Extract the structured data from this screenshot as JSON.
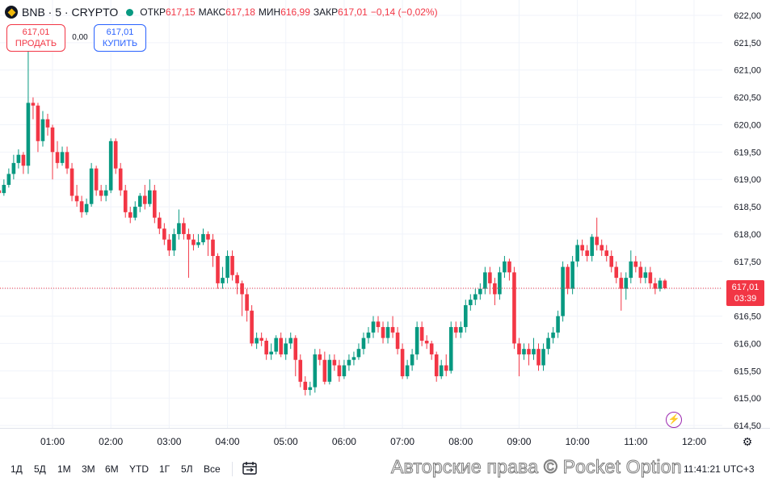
{
  "header": {
    "symbol": "BNB · 5 · CRYPTO",
    "open_label": "ОТКР",
    "open_value": "617,15",
    "high_label": "МАКС",
    "high_value": "617,18",
    "low_label": "МИН",
    "low_value": "616,99",
    "close_label": "ЗАКР",
    "close_value": "617,01",
    "change": "−0,14 (−0,02%)"
  },
  "trade": {
    "sell_price": "617,01",
    "sell_label": "ПРОДАТЬ",
    "spread": "0,00",
    "buy_price": "617,01",
    "buy_label": "КУПИТЬ"
  },
  "price_tag": {
    "price": "617,01",
    "countdown": "03:39"
  },
  "timeframes": [
    "1Д",
    "5Д",
    "1М",
    "3М",
    "6М",
    "YTD",
    "1Г",
    "5Л",
    "Все"
  ],
  "clock": "11:41:21 UTC+3",
  "watermark": "Авторские права © Pocket Option",
  "colors": {
    "up": "#089981",
    "down": "#f23645",
    "grid": "#f0f3fa",
    "tag": "#f23645"
  },
  "icons": {
    "flash": "lightning-icon",
    "settings": "gear-icon",
    "calendar": "calendar-range-icon"
  },
  "chart_data": {
    "type": "candlestick",
    "symbol": "BNB",
    "interval_minutes": 5,
    "y_ticks": [
      "622,00",
      "621,50",
      "621,00",
      "620,50",
      "620,00",
      "619,50",
      "619,00",
      "618,50",
      "618,00",
      "617,50",
      "617,00",
      "616,50",
      "616,00",
      "615,50",
      "615,00",
      "614,50"
    ],
    "y_range": [
      614.4,
      622.2
    ],
    "x_ticks": [
      "01:00",
      "02:00",
      "03:00",
      "04:00",
      "05:00",
      "06:00",
      "07:00",
      "08:00",
      "09:00",
      "10:00",
      "11:00",
      "12:00"
    ],
    "last_price": 617.01,
    "candles": [
      [
        618.8,
        618.75,
        618.9,
        618.65
      ],
      [
        618.75,
        618.9,
        619.0,
        618.7
      ],
      [
        618.9,
        619.1,
        619.2,
        618.85
      ],
      [
        619.1,
        619.3,
        619.45,
        619.0
      ],
      [
        619.3,
        619.45,
        619.55,
        619.2
      ],
      [
        619.45,
        619.25,
        619.5,
        619.1
      ],
      [
        619.25,
        620.4,
        621.7,
        619.1
      ],
      [
        620.4,
        620.35,
        620.5,
        620.1
      ],
      [
        620.35,
        619.7,
        620.4,
        619.5
      ],
      [
        619.7,
        620.1,
        620.25,
        619.6
      ],
      [
        620.1,
        619.95,
        620.2,
        619.8
      ],
      [
        619.95,
        619.5,
        620.0,
        619.0
      ],
      [
        619.5,
        619.3,
        619.7,
        619.2
      ],
      [
        619.3,
        619.5,
        619.6,
        619.25
      ],
      [
        619.5,
        619.2,
        619.6,
        619.1
      ],
      [
        619.2,
        618.7,
        619.3,
        618.6
      ],
      [
        618.7,
        618.6,
        618.9,
        618.5
      ],
      [
        618.6,
        618.4,
        618.7,
        618.3
      ],
      [
        618.4,
        618.55,
        618.65,
        618.35
      ],
      [
        618.55,
        619.2,
        619.3,
        618.5
      ],
      [
        619.2,
        618.8,
        619.25,
        618.7
      ],
      [
        618.8,
        618.7,
        618.9,
        618.6
      ],
      [
        618.7,
        618.8,
        618.9,
        618.6
      ],
      [
        618.8,
        619.7,
        619.75,
        618.75
      ],
      [
        619.7,
        619.2,
        619.75,
        619.1
      ],
      [
        619.2,
        618.8,
        619.3,
        618.7
      ],
      [
        618.8,
        618.4,
        618.9,
        618.3
      ],
      [
        618.4,
        618.3,
        618.5,
        618.2
      ],
      [
        618.3,
        618.5,
        618.6,
        618.25
      ],
      [
        618.5,
        618.7,
        618.75,
        618.4
      ],
      [
        618.7,
        618.55,
        618.9,
        618.45
      ],
      [
        618.55,
        618.8,
        619.0,
        618.5
      ],
      [
        618.8,
        618.3,
        618.9,
        618.2
      ],
      [
        618.3,
        618.1,
        618.4,
        618.0
      ],
      [
        618.1,
        617.9,
        618.2,
        617.8
      ],
      [
        617.9,
        617.7,
        618.0,
        617.6
      ],
      [
        617.7,
        618.0,
        618.1,
        617.6
      ],
      [
        618.0,
        618.2,
        618.45,
        617.9
      ],
      [
        618.2,
        618.0,
        618.3,
        617.9
      ],
      [
        618.0,
        617.9,
        618.1,
        617.2
      ],
      [
        617.9,
        617.8,
        618.0,
        617.7
      ],
      [
        617.8,
        617.85,
        618.0,
        617.75
      ],
      [
        617.85,
        618.0,
        618.1,
        617.8
      ],
      [
        618.0,
        617.9,
        618.05,
        617.6
      ],
      [
        617.9,
        617.6,
        618.0,
        617.4
      ],
      [
        617.6,
        617.1,
        617.65,
        617.0
      ],
      [
        617.1,
        617.2,
        617.4,
        617.0
      ],
      [
        617.2,
        617.6,
        617.7,
        617.1
      ],
      [
        617.6,
        617.25,
        617.7,
        617.15
      ],
      [
        617.25,
        617.1,
        617.3,
        616.9
      ],
      [
        617.1,
        616.9,
        617.15,
        616.5
      ],
      [
        616.9,
        616.6,
        617.0,
        616.4
      ],
      [
        616.6,
        616.0,
        616.7,
        615.95
      ],
      [
        616.0,
        616.1,
        616.2,
        615.9
      ],
      [
        616.1,
        616.05,
        616.2,
        615.95
      ],
      [
        616.05,
        615.8,
        616.1,
        615.7
      ],
      [
        615.8,
        615.85,
        616.0,
        615.7
      ],
      [
        615.85,
        616.1,
        616.15,
        615.8
      ],
      [
        616.1,
        615.8,
        616.2,
        615.75
      ],
      [
        615.8,
        616.0,
        616.1,
        615.7
      ],
      [
        616.0,
        616.1,
        616.2,
        615.9
      ],
      [
        616.1,
        615.7,
        616.15,
        615.4
      ],
      [
        615.7,
        615.3,
        615.8,
        615.2
      ],
      [
        615.3,
        615.15,
        615.4,
        615.05
      ],
      [
        615.15,
        615.2,
        615.3,
        615.05
      ],
      [
        615.2,
        615.8,
        615.9,
        615.1
      ],
      [
        615.8,
        615.7,
        615.9,
        615.6
      ],
      [
        615.7,
        615.3,
        615.85,
        615.25
      ],
      [
        615.3,
        615.7,
        615.8,
        615.25
      ],
      [
        615.7,
        615.6,
        615.8,
        615.5
      ],
      [
        615.6,
        615.4,
        615.7,
        615.3
      ],
      [
        615.4,
        615.6,
        615.7,
        615.35
      ],
      [
        615.6,
        615.7,
        615.8,
        615.5
      ],
      [
        615.7,
        615.75,
        615.85,
        615.6
      ],
      [
        615.75,
        615.9,
        616.0,
        615.7
      ],
      [
        615.9,
        616.1,
        616.2,
        615.8
      ],
      [
        616.1,
        616.2,
        616.3,
        616.0
      ],
      [
        616.2,
        616.4,
        616.5,
        616.1
      ],
      [
        616.4,
        616.3,
        616.5,
        616.2
      ],
      [
        616.3,
        616.1,
        616.4,
        616.0
      ],
      [
        616.1,
        616.3,
        616.4,
        616.0
      ],
      [
        616.3,
        616.2,
        616.5,
        616.1
      ],
      [
        616.2,
        615.9,
        616.3,
        615.8
      ],
      [
        615.9,
        615.4,
        616.0,
        615.35
      ],
      [
        615.4,
        615.6,
        615.7,
        615.35
      ],
      [
        615.6,
        615.8,
        615.9,
        615.5
      ],
      [
        615.8,
        616.3,
        616.4,
        615.7
      ],
      [
        616.3,
        616.05,
        616.4,
        615.95
      ],
      [
        616.05,
        616.0,
        616.15,
        615.9
      ],
      [
        616.0,
        615.8,
        616.05,
        615.7
      ],
      [
        615.8,
        615.4,
        615.85,
        615.3
      ],
      [
        615.4,
        615.6,
        615.7,
        615.35
      ],
      [
        615.6,
        615.5,
        615.8,
        615.4
      ],
      [
        615.5,
        616.3,
        616.4,
        615.45
      ],
      [
        616.3,
        616.2,
        616.4,
        616.1
      ],
      [
        616.2,
        616.3,
        616.4,
        616.1
      ],
      [
        616.3,
        616.7,
        616.8,
        616.2
      ],
      [
        616.7,
        616.8,
        616.9,
        616.6
      ],
      [
        616.8,
        616.9,
        617.0,
        616.7
      ],
      [
        616.9,
        617.0,
        617.1,
        616.8
      ],
      [
        617.0,
        617.3,
        617.4,
        616.9
      ],
      [
        617.3,
        617.1,
        617.4,
        616.9
      ],
      [
        617.1,
        616.9,
        617.2,
        616.7
      ],
      [
        616.9,
        617.3,
        617.4,
        616.8
      ],
      [
        617.3,
        617.5,
        617.6,
        617.2
      ],
      [
        617.5,
        617.3,
        617.55,
        617.15
      ],
      [
        617.3,
        616.0,
        617.4,
        615.9
      ],
      [
        616.0,
        615.8,
        616.1,
        615.4
      ],
      [
        615.8,
        615.9,
        616.0,
        615.7
      ],
      [
        615.9,
        615.8,
        616.0,
        615.6
      ],
      [
        615.8,
        615.9,
        616.1,
        615.7
      ],
      [
        615.9,
        615.6,
        616.0,
        615.5
      ],
      [
        615.6,
        615.9,
        616.0,
        615.5
      ],
      [
        615.9,
        616.1,
        616.2,
        615.8
      ],
      [
        616.1,
        616.2,
        616.3,
        616.0
      ],
      [
        616.2,
        616.5,
        616.6,
        616.1
      ],
      [
        616.5,
        617.4,
        617.5,
        616.4
      ],
      [
        617.4,
        617.0,
        617.45,
        616.9
      ],
      [
        617.0,
        617.5,
        617.6,
        616.9
      ],
      [
        617.5,
        617.8,
        617.9,
        617.4
      ],
      [
        617.8,
        617.7,
        617.9,
        617.6
      ],
      [
        617.7,
        617.6,
        617.8,
        617.5
      ],
      [
        617.6,
        617.95,
        618.0,
        617.5
      ],
      [
        617.95,
        617.8,
        618.3,
        617.7
      ],
      [
        617.8,
        617.7,
        617.9,
        617.6
      ],
      [
        617.7,
        617.6,
        617.8,
        617.5
      ],
      [
        617.6,
        617.4,
        617.7,
        617.3
      ],
      [
        617.4,
        617.2,
        617.5,
        617.1
      ],
      [
        617.2,
        617.0,
        617.3,
        616.6
      ],
      [
        617.0,
        617.2,
        617.3,
        616.8
      ],
      [
        617.2,
        617.5,
        617.7,
        617.1
      ],
      [
        617.5,
        617.4,
        617.6,
        617.3
      ],
      [
        617.4,
        617.2,
        617.5,
        617.1
      ],
      [
        617.2,
        617.3,
        617.4,
        617.1
      ],
      [
        617.3,
        617.1,
        617.4,
        617.0
      ],
      [
        617.1,
        617.0,
        617.2,
        616.9
      ],
      [
        617.0,
        617.15,
        617.2,
        616.95
      ],
      [
        617.15,
        617.01,
        617.18,
        616.99
      ]
    ]
  }
}
